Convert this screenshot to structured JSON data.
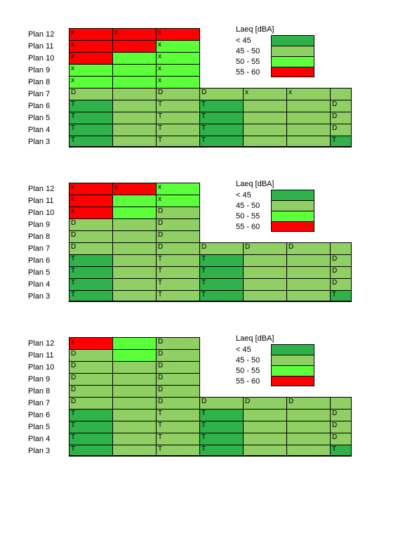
{
  "colors": {
    "lt45": "#2fb24a",
    "b45_50": "#8fcf63",
    "b50_55": "#5bff3a",
    "b55_60": "#ff0000",
    "border": "#000000",
    "background": "#ffffff"
  },
  "legend": {
    "title": "Laeq [dBA]",
    "items": [
      {
        "label": "< 45",
        "colorKey": "lt45"
      },
      {
        "label": "45 - 50",
        "colorKey": "b45_50"
      },
      {
        "label": "50 - 55",
        "colorKey": "b50_55"
      },
      {
        "label": "55 - 60",
        "colorKey": "b55_60"
      }
    ]
  },
  "row_labels": [
    "Plan 12",
    "Plan 11",
    "Plan 10",
    "Plan 9",
    "Plan 8",
    "Plan 7",
    "Plan 6",
    "Plan 5",
    "Plan 4",
    "Plan 3"
  ],
  "panels": [
    {
      "rows": [
        [
          {
            "t": "x",
            "c": "b55_60"
          },
          {
            "t": "x",
            "c": "b55_60"
          },
          {
            "t": "x",
            "c": "b55_60"
          }
        ],
        [
          {
            "t": "x",
            "c": "b55_60"
          },
          {
            "t": "",
            "c": "b55_60"
          },
          {
            "t": "x",
            "c": "b50_55"
          }
        ],
        [
          {
            "t": "x",
            "c": "b55_60"
          },
          {
            "t": "",
            "c": "b50_55"
          },
          {
            "t": "x",
            "c": "b50_55"
          }
        ],
        [
          {
            "t": "x",
            "c": "b50_55"
          },
          {
            "t": "",
            "c": "b50_55"
          },
          {
            "t": "x",
            "c": "b50_55"
          }
        ],
        [
          {
            "t": "x",
            "c": "b50_55"
          },
          {
            "t": "",
            "c": "b50_55"
          },
          {
            "t": "x",
            "c": "b50_55"
          }
        ],
        [
          {
            "t": "D",
            "c": "b45_50"
          },
          {
            "t": "",
            "c": "b45_50"
          },
          {
            "t": "D",
            "c": "b45_50"
          },
          {
            "t": "D",
            "c": "b45_50"
          },
          {
            "t": "x",
            "c": "b45_50"
          },
          {
            "t": "x",
            "c": "b45_50"
          },
          {
            "t": "",
            "c": "b45_50"
          }
        ],
        [
          {
            "t": "T",
            "c": "lt45"
          },
          {
            "t": "",
            "c": "b45_50"
          },
          {
            "t": "T",
            "c": "b45_50"
          },
          {
            "t": "T",
            "c": "lt45"
          },
          {
            "t": "",
            "c": "b45_50"
          },
          {
            "t": "",
            "c": "b45_50"
          },
          {
            "t": "D",
            "c": "b45_50"
          }
        ],
        [
          {
            "t": "T",
            "c": "lt45"
          },
          {
            "t": "",
            "c": "b45_50"
          },
          {
            "t": "T",
            "c": "b45_50"
          },
          {
            "t": "T",
            "c": "lt45"
          },
          {
            "t": "",
            "c": "b45_50"
          },
          {
            "t": "",
            "c": "b45_50"
          },
          {
            "t": "D",
            "c": "b45_50"
          }
        ],
        [
          {
            "t": "T",
            "c": "lt45"
          },
          {
            "t": "",
            "c": "b45_50"
          },
          {
            "t": "T",
            "c": "b45_50"
          },
          {
            "t": "T",
            "c": "lt45"
          },
          {
            "t": "",
            "c": "b45_50"
          },
          {
            "t": "",
            "c": "b45_50"
          },
          {
            "t": "D",
            "c": "b45_50"
          }
        ],
        [
          {
            "t": "T",
            "c": "lt45"
          },
          {
            "t": "",
            "c": "b45_50"
          },
          {
            "t": "T",
            "c": "b45_50"
          },
          {
            "t": "T",
            "c": "lt45"
          },
          {
            "t": "",
            "c": "b45_50"
          },
          {
            "t": "",
            "c": "b45_50"
          },
          {
            "t": "T",
            "c": "lt45"
          }
        ]
      ]
    },
    {
      "rows": [
        [
          {
            "t": "x",
            "c": "b55_60"
          },
          {
            "t": "x",
            "c": "b55_60"
          },
          {
            "t": "x",
            "c": "b50_55"
          }
        ],
        [
          {
            "t": "x",
            "c": "b55_60"
          },
          {
            "t": "",
            "c": "b50_55"
          },
          {
            "t": "x",
            "c": "b50_55"
          }
        ],
        [
          {
            "t": "x",
            "c": "b55_60"
          },
          {
            "t": "",
            "c": "b50_55"
          },
          {
            "t": "D",
            "c": "b45_50"
          }
        ],
        [
          {
            "t": "D",
            "c": "b45_50"
          },
          {
            "t": "",
            "c": "b45_50"
          },
          {
            "t": "D",
            "c": "b45_50"
          }
        ],
        [
          {
            "t": "D",
            "c": "b45_50"
          },
          {
            "t": "",
            "c": "b45_50"
          },
          {
            "t": "D",
            "c": "b45_50"
          }
        ],
        [
          {
            "t": "D",
            "c": "b45_50"
          },
          {
            "t": "",
            "c": "b45_50"
          },
          {
            "t": "D",
            "c": "b45_50"
          },
          {
            "t": "D",
            "c": "b45_50"
          },
          {
            "t": "D",
            "c": "b45_50"
          },
          {
            "t": "D",
            "c": "b45_50"
          },
          {
            "t": "",
            "c": "b45_50"
          }
        ],
        [
          {
            "t": "T",
            "c": "lt45"
          },
          {
            "t": "",
            "c": "b45_50"
          },
          {
            "t": "T",
            "c": "b45_50"
          },
          {
            "t": "T",
            "c": "lt45"
          },
          {
            "t": "",
            "c": "b45_50"
          },
          {
            "t": "",
            "c": "b45_50"
          },
          {
            "t": "D",
            "c": "b45_50"
          }
        ],
        [
          {
            "t": "T",
            "c": "lt45"
          },
          {
            "t": "",
            "c": "b45_50"
          },
          {
            "t": "T",
            "c": "b45_50"
          },
          {
            "t": "T",
            "c": "lt45"
          },
          {
            "t": "",
            "c": "b45_50"
          },
          {
            "t": "",
            "c": "b45_50"
          },
          {
            "t": "D",
            "c": "b45_50"
          }
        ],
        [
          {
            "t": "T",
            "c": "lt45"
          },
          {
            "t": "",
            "c": "b45_50"
          },
          {
            "t": "T",
            "c": "b45_50"
          },
          {
            "t": "T",
            "c": "lt45"
          },
          {
            "t": "",
            "c": "b45_50"
          },
          {
            "t": "",
            "c": "b45_50"
          },
          {
            "t": "D",
            "c": "b45_50"
          }
        ],
        [
          {
            "t": "T",
            "c": "lt45"
          },
          {
            "t": "",
            "c": "b45_50"
          },
          {
            "t": "T",
            "c": "b45_50"
          },
          {
            "t": "T",
            "c": "lt45"
          },
          {
            "t": "",
            "c": "b45_50"
          },
          {
            "t": "",
            "c": "b45_50"
          },
          {
            "t": "T",
            "c": "lt45"
          }
        ]
      ]
    },
    {
      "rows": [
        [
          {
            "t": "x",
            "c": "b55_60"
          },
          {
            "t": "",
            "c": "b50_55"
          },
          {
            "t": "D",
            "c": "b45_50"
          }
        ],
        [
          {
            "t": "D",
            "c": "b45_50"
          },
          {
            "t": "",
            "c": "b50_55"
          },
          {
            "t": "D",
            "c": "b45_50"
          }
        ],
        [
          {
            "t": "D",
            "c": "b45_50"
          },
          {
            "t": "",
            "c": "b45_50"
          },
          {
            "t": "D",
            "c": "b45_50"
          }
        ],
        [
          {
            "t": "D",
            "c": "b45_50"
          },
          {
            "t": "",
            "c": "b45_50"
          },
          {
            "t": "D",
            "c": "b45_50"
          }
        ],
        [
          {
            "t": "D",
            "c": "b45_50"
          },
          {
            "t": "",
            "c": "b45_50"
          },
          {
            "t": "D",
            "c": "b45_50"
          }
        ],
        [
          {
            "t": "D",
            "c": "b45_50"
          },
          {
            "t": "",
            "c": "b45_50"
          },
          {
            "t": "D",
            "c": "b45_50"
          },
          {
            "t": "D",
            "c": "b45_50"
          },
          {
            "t": "D",
            "c": "b45_50"
          },
          {
            "t": "D",
            "c": "b45_50"
          },
          {
            "t": "",
            "c": "b45_50"
          }
        ],
        [
          {
            "t": "T",
            "c": "lt45"
          },
          {
            "t": "",
            "c": "b45_50"
          },
          {
            "t": "T",
            "c": "b45_50"
          },
          {
            "t": "T",
            "c": "lt45"
          },
          {
            "t": "",
            "c": "b45_50"
          },
          {
            "t": "",
            "c": "b45_50"
          },
          {
            "t": "D",
            "c": "b45_50"
          }
        ],
        [
          {
            "t": "T",
            "c": "lt45"
          },
          {
            "t": "",
            "c": "b45_50"
          },
          {
            "t": "T",
            "c": "b45_50"
          },
          {
            "t": "T",
            "c": "lt45"
          },
          {
            "t": "",
            "c": "b45_50"
          },
          {
            "t": "",
            "c": "b45_50"
          },
          {
            "t": "D",
            "c": "b45_50"
          }
        ],
        [
          {
            "t": "T",
            "c": "lt45"
          },
          {
            "t": "",
            "c": "b45_50"
          },
          {
            "t": "T",
            "c": "b45_50"
          },
          {
            "t": "T",
            "c": "lt45"
          },
          {
            "t": "",
            "c": "b45_50"
          },
          {
            "t": "",
            "c": "b45_50"
          },
          {
            "t": "D",
            "c": "b45_50"
          }
        ],
        [
          {
            "t": "T",
            "c": "lt45"
          },
          {
            "t": "",
            "c": "b45_50"
          },
          {
            "t": "T",
            "c": "b45_50"
          },
          {
            "t": "T",
            "c": "lt45"
          },
          {
            "t": "",
            "c": "b45_50"
          },
          {
            "t": "",
            "c": "b45_50"
          },
          {
            "t": "T",
            "c": "lt45"
          }
        ]
      ]
    }
  ]
}
